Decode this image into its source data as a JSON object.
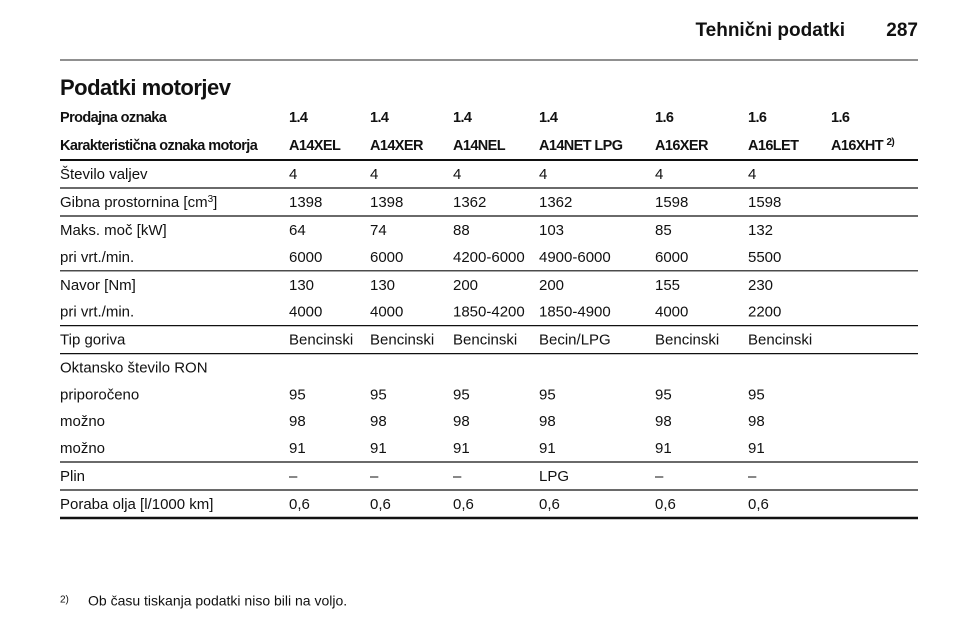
{
  "header": {
    "section": "Tehnični podatki",
    "page_number": "287"
  },
  "title": "Podatki motorjev",
  "table": {
    "header_rows": [
      [
        "Prodajna oznaka",
        "1.4",
        "1.4",
        "1.4",
        "1.4",
        "1.6",
        "1.6",
        "1.6"
      ],
      [
        "Karakteristična oznaka motorja",
        "A14XEL",
        "A14XER",
        "A14NEL",
        "A14NET LPG",
        "A16XER",
        "A16LET",
        [
          {
            "text": "A16XHT "
          },
          {
            "sup": "2)"
          }
        ]
      ]
    ],
    "groups": [
      [
        [
          "Število valjev",
          "4",
          "4",
          "4",
          "4",
          "4",
          "4"
        ]
      ],
      [
        [
          [
            {
              "text": "Gibna prostornina [cm"
            },
            {
              "sup": "3"
            },
            {
              "text": "]"
            }
          ],
          "1398",
          "1398",
          "1362",
          "1362",
          "1598",
          "1598"
        ]
      ],
      [
        [
          "Maks. moč [kW]",
          "64",
          "74",
          "88",
          "103",
          "85",
          "132"
        ],
        [
          "pri vrt./min.",
          "6000",
          "6000",
          "4200-6000",
          "4900-6000",
          "6000",
          "5500"
        ]
      ],
      [
        [
          "Navor [Nm]",
          "130",
          "130",
          "200",
          "200",
          "155",
          "230"
        ],
        [
          "pri vrt./min.",
          "4000",
          "4000",
          "1850-4200",
          "1850-4900",
          "4000",
          "2200"
        ]
      ],
      [
        [
          "Tip goriva",
          "Bencinski",
          "Bencinski",
          "Bencinski",
          "Becin/LPG",
          "Bencinski",
          "Bencinski"
        ]
      ],
      [
        [
          "Oktansko število RON"
        ],
        [
          "priporočeno",
          "95",
          "95",
          "95",
          "95",
          "95",
          "95"
        ],
        [
          "možno",
          "98",
          "98",
          "98",
          "98",
          "98",
          "98"
        ],
        [
          "možno",
          "91",
          "91",
          "91",
          "91",
          "91",
          "91"
        ]
      ],
      [
        [
          "Plin",
          "–",
          "–",
          "–",
          "LPG",
          "–",
          "–"
        ]
      ],
      [
        [
          "Poraba olja [l/1000 km]",
          "0,6",
          "0,6",
          "0,6",
          "0,6",
          "0,6",
          "0,6"
        ]
      ]
    ]
  },
  "footnote": {
    "marker": "2)",
    "text": "Ob času tiskanja podatki niso bili na voljo."
  }
}
